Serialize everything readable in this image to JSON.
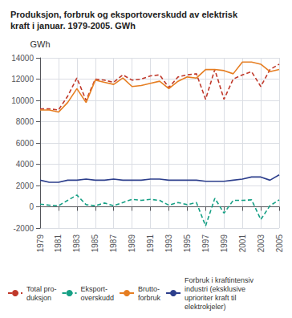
{
  "chart_data": {
    "type": "line",
    "title": "Produksjon, forbruk og eksportoverskudd av elektrisk\nkraft i januar. 1979-2005. GWh",
    "ylabel": "GWh",
    "x": [
      1979,
      1980,
      1981,
      1982,
      1983,
      1984,
      1985,
      1986,
      1987,
      1988,
      1989,
      1990,
      1991,
      1992,
      1993,
      1994,
      1995,
      1996,
      1997,
      1998,
      1999,
      2000,
      2001,
      2002,
      2003,
      2004,
      2005
    ],
    "series": [
      {
        "name": "Total pro-\nduksjon",
        "color": "#c0392b",
        "line_style": "dashed",
        "values": [
          9200,
          9200,
          9100,
          10400,
          12100,
          10000,
          12000,
          11900,
          11700,
          12400,
          11900,
          12000,
          12300,
          12400,
          11200,
          12200,
          12400,
          12500,
          10100,
          12900,
          10100,
          12000,
          12400,
          12700,
          11300,
          12900,
          13400
        ]
      },
      {
        "name": "Eksport-\noverskudd",
        "color": "#16a085",
        "line_style": "dashed",
        "values": [
          250,
          150,
          100,
          600,
          1100,
          200,
          100,
          350,
          100,
          400,
          700,
          600,
          700,
          600,
          150,
          400,
          200,
          400,
          -1800,
          800,
          -600,
          600,
          600,
          650,
          -1200,
          100,
          650
        ]
      },
      {
        "name": "Brutto-\nforbruk",
        "color": "#e67e22",
        "line_style": "solid",
        "values": [
          9100,
          9100,
          8900,
          9800,
          11100,
          9800,
          11900,
          11700,
          11500,
          12100,
          11300,
          11400,
          11600,
          11800,
          11100,
          11800,
          12200,
          12100,
          12900,
          12900,
          12800,
          12500,
          13600,
          13600,
          13400,
          12700,
          12900
        ]
      },
      {
        "name": "Forbruk i kraftintensiv\nindustri (eksklusive\nuprioriter kraft til\nelektrokjeler)",
        "color": "#2c3e8c",
        "line_style": "solid",
        "values": [
          2500,
          2300,
          2300,
          2500,
          2500,
          2600,
          2500,
          2500,
          2600,
          2500,
          2500,
          2500,
          2600,
          2600,
          2500,
          2500,
          2500,
          2500,
          2400,
          2400,
          2400,
          2500,
          2600,
          2800,
          2800,
          2500,
          3000
        ]
      }
    ],
    "xlim": [
      1979,
      2005
    ],
    "xticks": [
      1979,
      1981,
      1983,
      1985,
      1987,
      1989,
      1991,
      1993,
      1995,
      1997,
      1999,
      2001,
      2003,
      2005
    ],
    "ylim": [
      -2000,
      14000
    ],
    "yticks": [
      -2000,
      0,
      2000,
      4000,
      6000,
      8000,
      10000,
      12000,
      14000
    ],
    "grid": true,
    "legend": "bottom"
  }
}
